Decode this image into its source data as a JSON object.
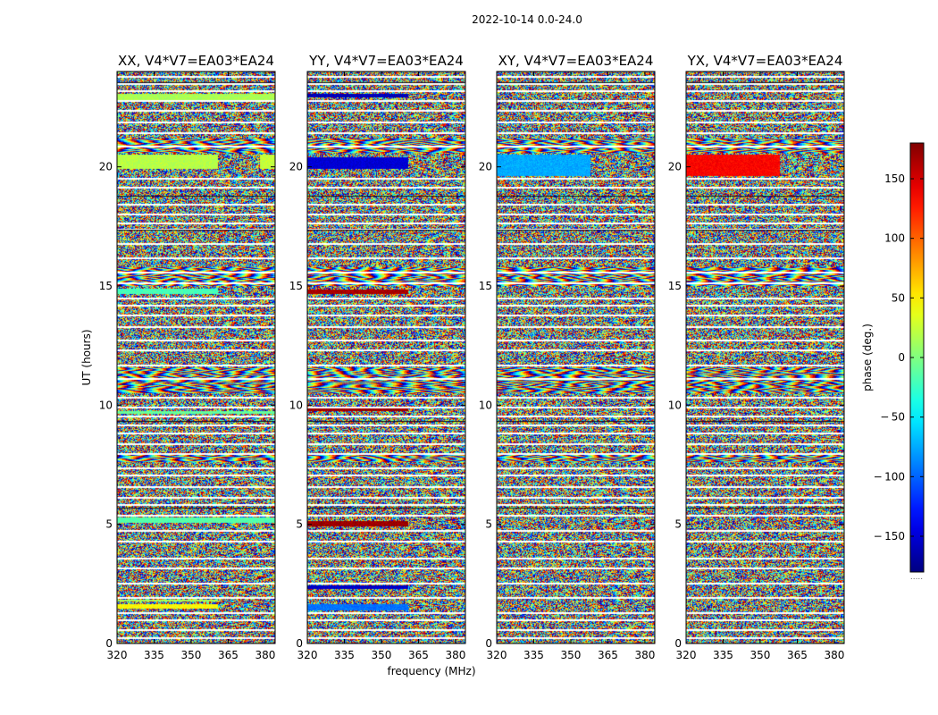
{
  "figure": {
    "suptitle": "2022-10-14 0.0-24.0"
  },
  "chart_data": {
    "type": "heatmap",
    "ylabel": "UT (hours)",
    "xlabel": "frequency (MHz)",
    "xlim": [
      320,
      384
    ],
    "ylim": [
      0,
      24
    ],
    "xticks": [
      320,
      335,
      350,
      365,
      380
    ],
    "yticks": [
      0,
      5,
      10,
      15,
      20
    ],
    "panels": [
      {
        "title": "XX, V4*V7=EA03*EA24",
        "coherent": [
          {
            "t0": 1.45,
            "t1": 1.65,
            "f0": 320,
            "f1": 361,
            "phase": 45
          },
          {
            "t0": 1.75,
            "t1": 1.85,
            "f0": 320,
            "f1": 361,
            "phase": 15
          },
          {
            "t0": 5.05,
            "t1": 5.3,
            "f0": 320,
            "f1": 384,
            "phase": -15
          },
          {
            "t0": 9.62,
            "t1": 9.75,
            "f0": 320,
            "f1": 384,
            "phase": -10
          },
          {
            "t0": 14.65,
            "t1": 14.9,
            "f0": 320,
            "f1": 361,
            "phase": -20
          },
          {
            "t0": 19.9,
            "t1": 20.5,
            "f0": 320,
            "f1": 361,
            "phase": 20
          },
          {
            "t0": 19.9,
            "t1": 20.5,
            "f0": 378,
            "f1": 384,
            "phase": 25
          },
          {
            "t0": 22.8,
            "t1": 23.05,
            "f0": 320,
            "f1": 384,
            "phase": 15
          }
        ]
      },
      {
        "title": "YY, V4*V7=EA03*EA24",
        "coherent": [
          {
            "t0": 1.4,
            "t1": 1.65,
            "f0": 320,
            "f1": 361,
            "phase": -95
          },
          {
            "t0": 2.3,
            "t1": 2.45,
            "f0": 320,
            "f1": 361,
            "phase": -155
          },
          {
            "t0": 4.9,
            "t1": 5.15,
            "f0": 320,
            "f1": 361,
            "phase": 170
          },
          {
            "t0": 9.75,
            "t1": 9.9,
            "f0": 320,
            "f1": 361,
            "phase": 170
          },
          {
            "t0": 14.65,
            "t1": 14.85,
            "f0": 320,
            "f1": 361,
            "phase": 165
          },
          {
            "t0": 19.9,
            "t1": 20.4,
            "f0": 320,
            "f1": 361,
            "phase": -150
          },
          {
            "t0": 22.9,
            "t1": 23.05,
            "f0": 320,
            "f1": 361,
            "phase": -160
          }
        ]
      },
      {
        "title": "XY, V4*V7=EA03*EA24",
        "coherent": [
          {
            "t0": 19.6,
            "t1": 20.5,
            "f0": 320,
            "f1": 358,
            "phase": -75
          }
        ]
      },
      {
        "title": "YX, V4*V7=EA03*EA24",
        "coherent": [
          {
            "t0": 19.6,
            "t1": 20.5,
            "f0": 320,
            "f1": 358,
            "phase": 135
          }
        ]
      }
    ],
    "colorbar": {
      "label": "phase (deg.)",
      "min": -180,
      "max": 180,
      "ticks": [
        150,
        100,
        50,
        0,
        -50,
        -100,
        -150
      ],
      "tick_labels": [
        "150",
        "100",
        "50",
        "0",
        "− 50",
        "− 100",
        "− 150"
      ],
      "colormap": "jet",
      "footnote": "....."
    },
    "flag_bands": [
      0.25,
      0.6,
      1.0,
      1.3,
      1.95,
      2.55,
      3.2,
      3.6,
      4.3,
      4.75,
      5.4,
      5.85,
      6.15,
      6.6,
      7.1,
      7.4,
      8.0,
      8.4,
      8.85,
      9.2,
      9.55,
      9.95,
      10.35,
      11.15,
      11.7,
      12.35,
      12.75,
      13.3,
      13.8,
      14.2,
      14.5,
      15.15,
      15.6,
      16.2,
      16.8,
      17.4,
      17.65,
      18.05,
      18.45,
      19.15,
      19.55,
      20.9,
      21.45,
      21.9,
      22.4,
      22.8,
      23.2,
      23.5,
      23.8
    ]
  }
}
